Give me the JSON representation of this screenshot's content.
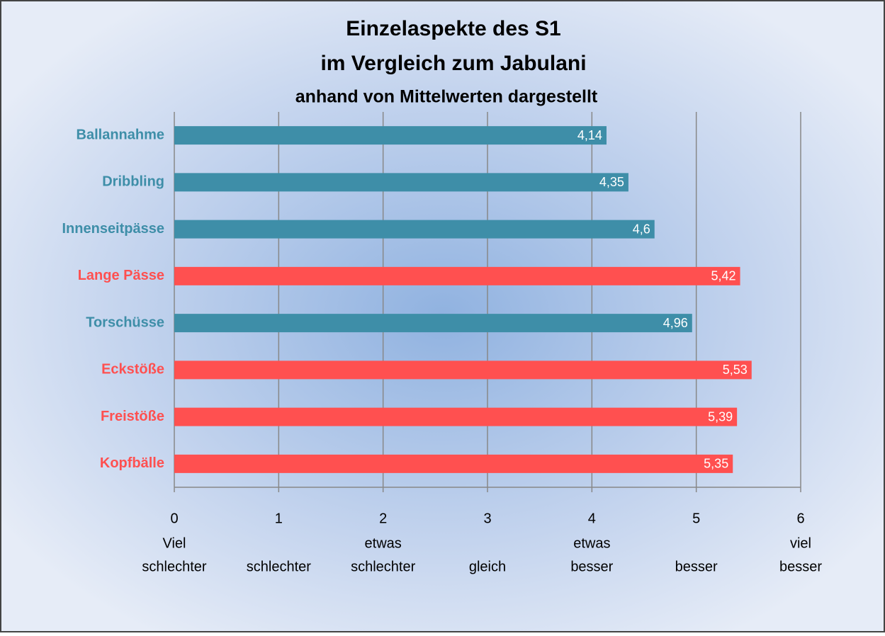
{
  "chart_data": {
    "type": "bar",
    "orientation": "horizontal",
    "title": [
      "Einzelaspekte des S1",
      "im Vergleich zum Jabulani"
    ],
    "subtitle": "anhand  von Mittelwerten dargestellt",
    "categories": [
      "Ballannahme",
      "Dribbling",
      "Innenseitpässe",
      "Lange Pässe",
      "Torschüsse",
      "Eckstöße",
      "Freistöße",
      "Kopfbälle"
    ],
    "values": [
      4.14,
      4.35,
      4.6,
      5.42,
      4.96,
      5.53,
      5.39,
      5.35
    ],
    "value_labels": [
      "4,14",
      "4,35",
      "4,6",
      "5,42",
      "4,96",
      "5,53",
      "5,39",
      "5,35"
    ],
    "colors": [
      "#3e8ea8",
      "#3e8ea8",
      "#3e8ea8",
      "#ff5050",
      "#3e8ea8",
      "#ff5050",
      "#ff5050",
      "#ff5050"
    ],
    "xlim": [
      0,
      6
    ],
    "xticks": [
      0,
      1,
      2,
      3,
      4,
      5,
      6
    ],
    "xtick_descriptions": [
      [
        "Viel",
        "schlechter"
      ],
      [
        "schlechter"
      ],
      [
        "etwas",
        "schlechter"
      ],
      [
        "gleich"
      ],
      [
        "etwas",
        "besser"
      ],
      [
        "besser"
      ],
      [
        "viel",
        "besser"
      ]
    ],
    "grid": true
  }
}
